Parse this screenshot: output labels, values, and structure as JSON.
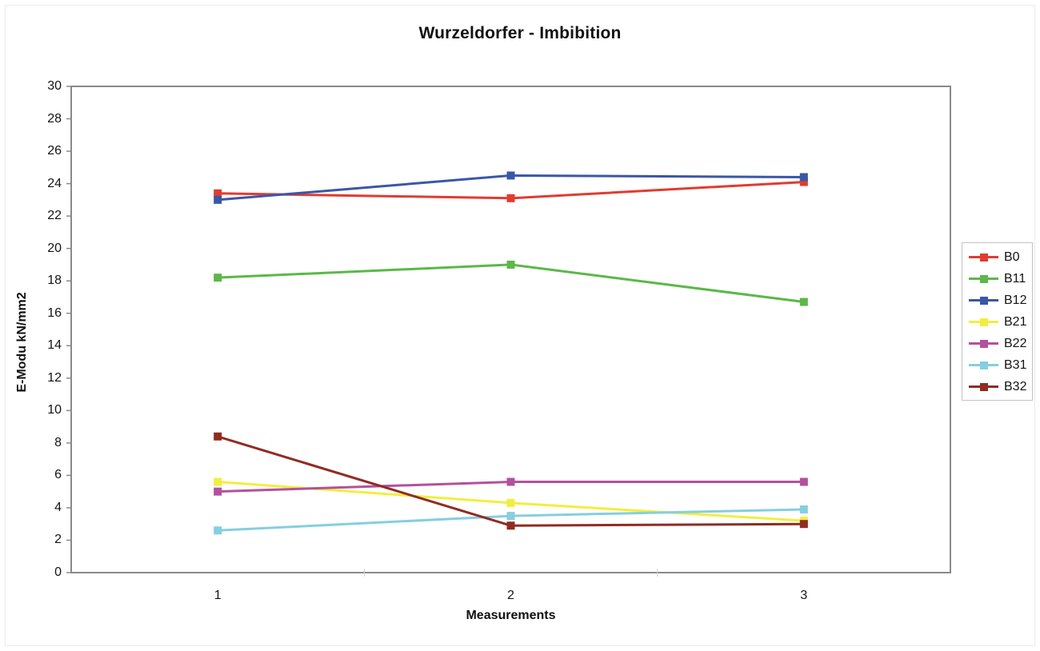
{
  "page": {
    "background": "#ffffff",
    "frame_border_color": "#ececec",
    "axis_border_color": "#8a8a8a",
    "tick_color": "#8a8a8a",
    "category_tick_color": "#d2d2d2"
  },
  "chart_data": {
    "type": "line",
    "title": "Wurzeldorfer - Imbibition",
    "xlabel": "Measurements",
    "ylabel": "E-Modu kN/mm2",
    "categories": [
      "1",
      "2",
      "3"
    ],
    "ylim": [
      0,
      30
    ],
    "yticks": [
      0,
      2,
      4,
      6,
      8,
      10,
      12,
      14,
      16,
      18,
      20,
      22,
      24,
      26,
      28,
      30
    ],
    "grid": false,
    "marker": "square",
    "legend_position": "right",
    "series": [
      {
        "name": "B0",
        "color": "#e03c31",
        "values": [
          23.4,
          23.1,
          24.1
        ]
      },
      {
        "name": "B11",
        "color": "#5bb848",
        "values": [
          18.2,
          19.0,
          16.7
        ]
      },
      {
        "name": "B12",
        "color": "#3a57a7",
        "values": [
          23.0,
          24.5,
          24.4
        ]
      },
      {
        "name": "B21",
        "color": "#f2ee3e",
        "values": [
          5.6,
          4.3,
          3.2
        ]
      },
      {
        "name": "B22",
        "color": "#b2519e",
        "values": [
          5.0,
          5.6,
          5.6
        ]
      },
      {
        "name": "B31",
        "color": "#85cfdf",
        "values": [
          2.6,
          3.5,
          3.9
        ]
      },
      {
        "name": "B32",
        "color": "#902c22",
        "values": [
          8.4,
          2.9,
          3.0
        ]
      }
    ]
  }
}
